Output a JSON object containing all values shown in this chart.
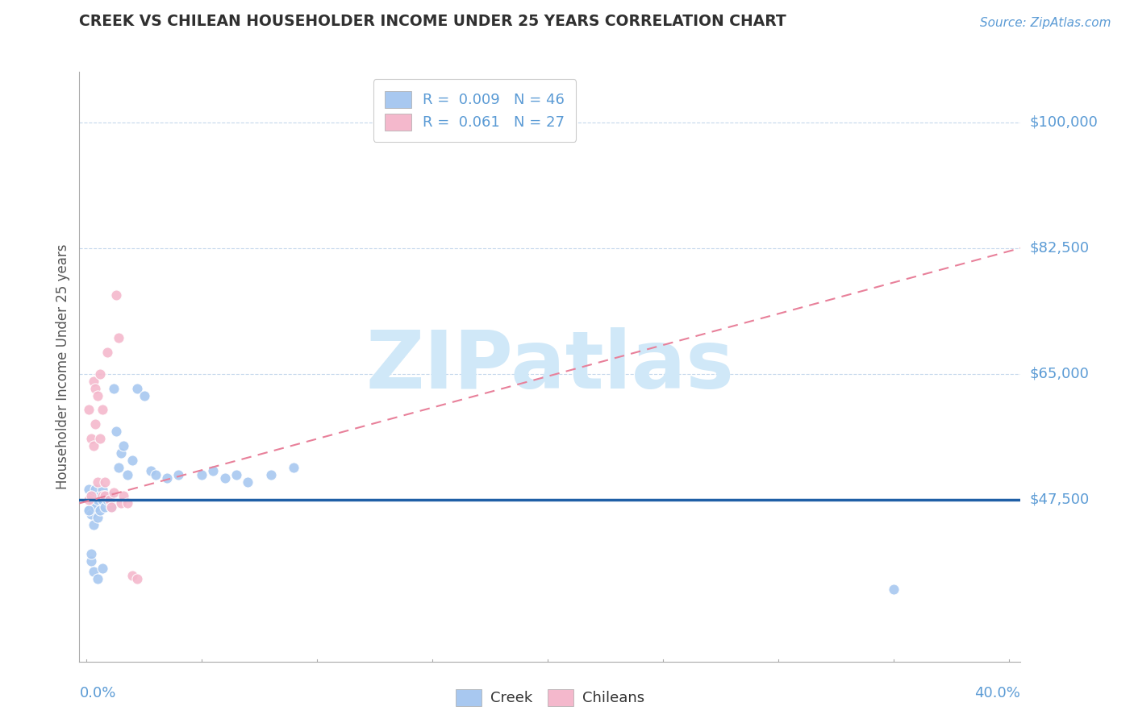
{
  "title": "CREEK VS CHILEAN HOUSEHOLDER INCOME UNDER 25 YEARS CORRELATION CHART",
  "source": "Source: ZipAtlas.com",
  "ylabel": "Householder Income Under 25 years",
  "ytick_labels": [
    "$100,000",
    "$82,500",
    "$65,000",
    "$47,500"
  ],
  "ytick_values": [
    100000,
    82500,
    65000,
    47500
  ],
  "ymin": 25000,
  "ymax": 107000,
  "xmin": -0.003,
  "xmax": 0.405,
  "legend_creek": "R =  0.009   N = 46",
  "legend_chileans": "R =  0.061   N = 27",
  "creek_color": "#a8c8f0",
  "chilean_color": "#f4b8cc",
  "creek_line_color": "#1f5fa6",
  "chilean_line_color": "#e8809a",
  "title_color": "#303030",
  "source_color": "#5b9bd5",
  "ytick_color": "#5b9bd5",
  "legend_r_color": "#5b9bd5",
  "watermark_color": "#d0e8f8",
  "watermark": "ZIPatlas",
  "creek_x": [
    0.001,
    0.001,
    0.002,
    0.002,
    0.003,
    0.003,
    0.004,
    0.004,
    0.005,
    0.005,
    0.006,
    0.006,
    0.007,
    0.007,
    0.008,
    0.008,
    0.009,
    0.01,
    0.011,
    0.012,
    0.013,
    0.014,
    0.015,
    0.016,
    0.018,
    0.02,
    0.022,
    0.025,
    0.028,
    0.03,
    0.035,
    0.04,
    0.05,
    0.055,
    0.06,
    0.065,
    0.07,
    0.08,
    0.09,
    0.002,
    0.003,
    0.005,
    0.007,
    0.35,
    0.001,
    0.002
  ],
  "creek_y": [
    49000,
    46000,
    45500,
    48000,
    47000,
    44000,
    46500,
    49000,
    47500,
    45000,
    48000,
    46000,
    47500,
    49000,
    46500,
    48000,
    47500,
    48000,
    46500,
    63000,
    57000,
    52000,
    54000,
    55000,
    51000,
    53000,
    63000,
    62000,
    51500,
    51000,
    50500,
    51000,
    51000,
    51500,
    50500,
    51000,
    50000,
    51000,
    52000,
    39000,
    37500,
    36500,
    38000,
    35000,
    46000,
    40000
  ],
  "chilean_x": [
    0.001,
    0.001,
    0.002,
    0.002,
    0.003,
    0.003,
    0.004,
    0.004,
    0.005,
    0.005,
    0.006,
    0.006,
    0.007,
    0.007,
    0.008,
    0.008,
    0.009,
    0.01,
    0.011,
    0.012,
    0.013,
    0.014,
    0.015,
    0.016,
    0.018,
    0.02,
    0.022
  ],
  "chilean_y": [
    47500,
    60000,
    56000,
    48000,
    55000,
    64000,
    63000,
    58000,
    62000,
    50000,
    65000,
    56000,
    60000,
    48000,
    50000,
    48000,
    68000,
    47500,
    46500,
    48500,
    76000,
    70000,
    47000,
    48000,
    47000,
    37000,
    36500
  ],
  "creek_trend_x": [
    -0.003,
    0.405
  ],
  "creek_trend_y": [
    47500,
    47500
  ],
  "chilean_trend_x": [
    -0.003,
    0.405
  ],
  "chilean_trend_y": [
    47000,
    82500
  ]
}
